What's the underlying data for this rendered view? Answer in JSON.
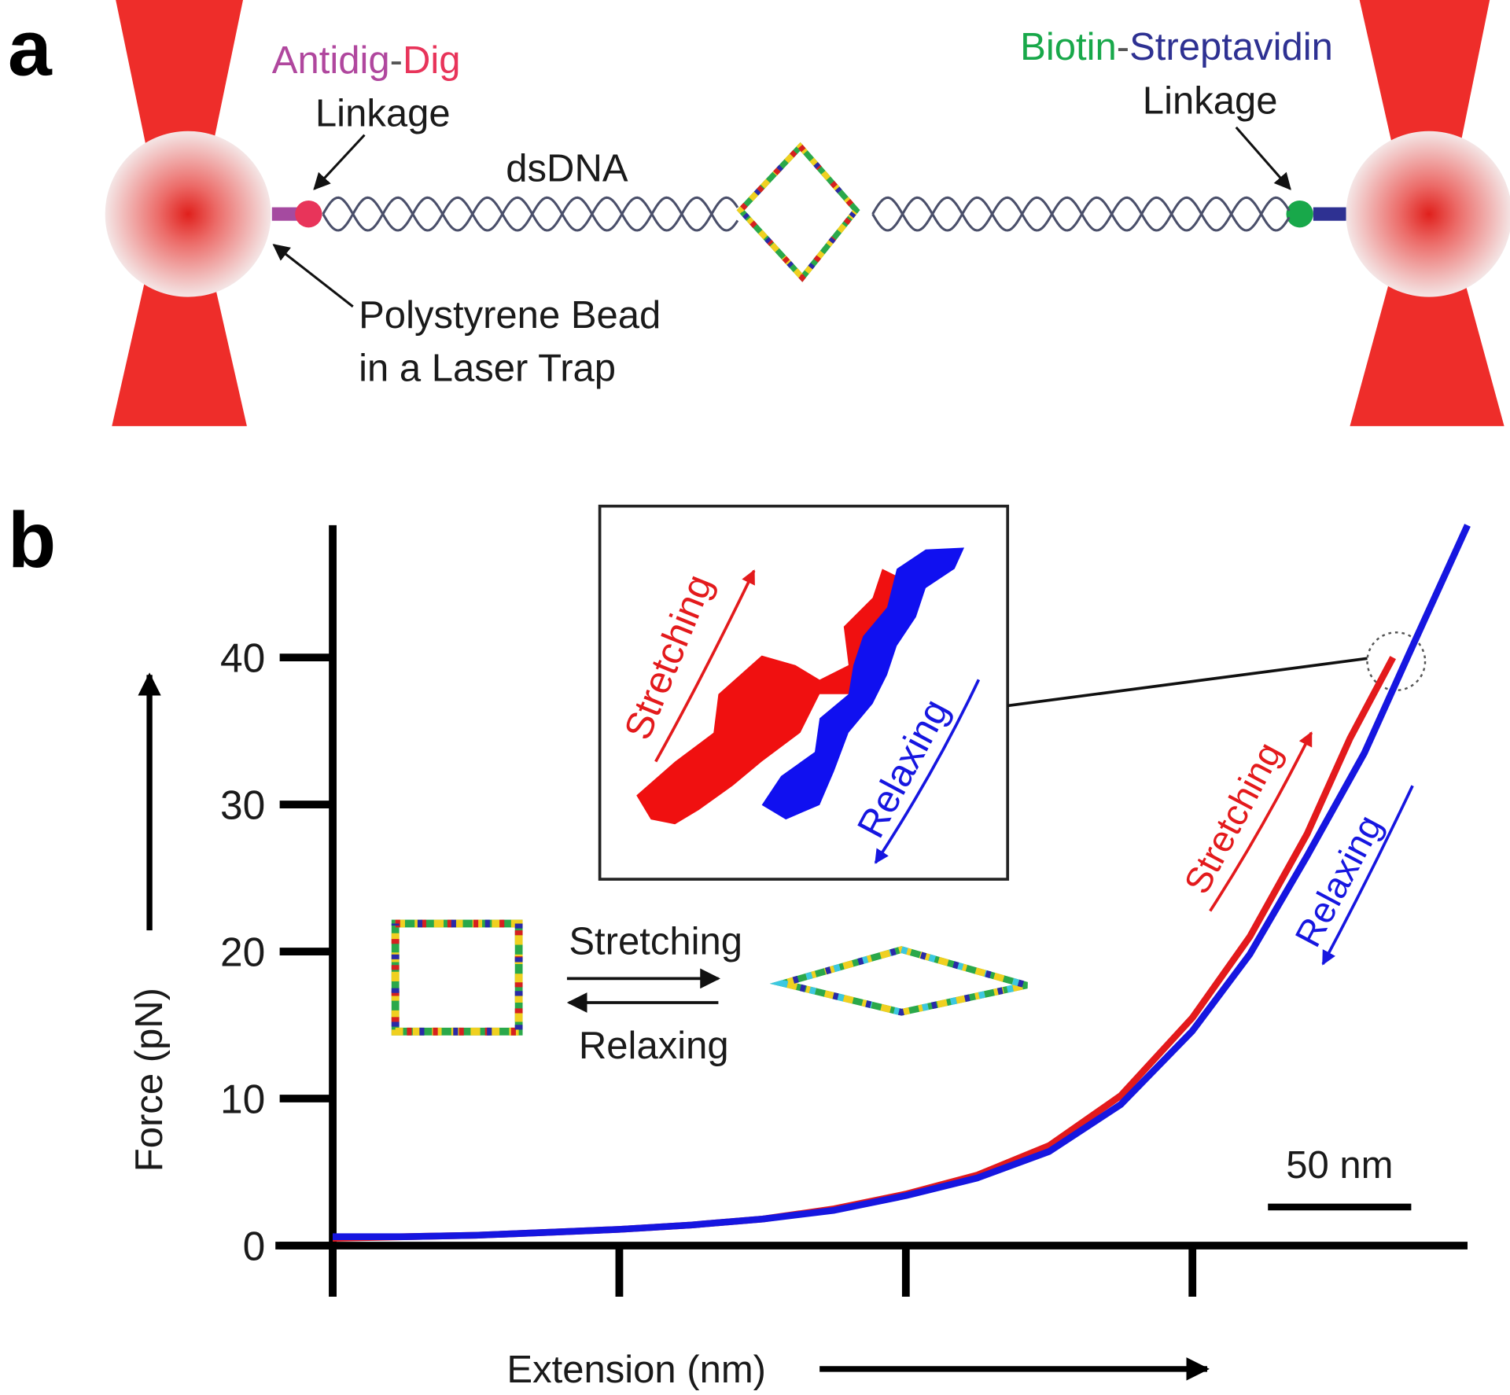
{
  "diagram": {
    "panel_label": "a",
    "left_linkage": {
      "part1": "Antidig",
      "separator": "-",
      "part2": "Dig",
      "line2": "Linkage"
    },
    "dna_label": "dsDNA",
    "bead_label": [
      "Polystyrene Bead",
      "in a Laser Trap"
    ],
    "right_linkage": {
      "part1": "Biotin",
      "separator": "-",
      "part2": "Streptavidin",
      "line2": "Linkage"
    }
  },
  "chart_data": {
    "type": "line",
    "panel_label": "b",
    "x_label": "Extension (nm)",
    "y_label": "Force (pN)",
    "xlim": [
      -20,
      396
    ],
    "xticks": [
      0,
      100,
      200,
      300
    ],
    "ylim": [
      0,
      49
    ],
    "yticks": [
      0,
      10,
      20,
      30,
      40
    ],
    "scale_bar": {
      "value": 50,
      "label": "50 nm"
    },
    "series": [
      {
        "name": "Stretching",
        "color": "#e31a1c",
        "x": [
          0,
          25,
          50,
          75,
          100,
          125,
          150,
          175,
          200,
          225,
          250,
          275,
          300,
          320,
          340,
          355,
          370
        ],
        "values": [
          0.5,
          0.6,
          0.7,
          0.9,
          1.1,
          1.4,
          1.8,
          2.5,
          3.5,
          4.8,
          6.8,
          10.2,
          15.5,
          21,
          28,
          34.5,
          40
        ]
      },
      {
        "name": "Relaxing",
        "color": "#1616e0",
        "x": [
          0,
          25,
          50,
          75,
          100,
          125,
          150,
          175,
          200,
          225,
          250,
          275,
          300,
          320,
          340,
          360,
          375,
          396
        ],
        "values": [
          0.6,
          0.6,
          0.7,
          0.9,
          1.1,
          1.4,
          1.8,
          2.4,
          3.4,
          4.6,
          6.4,
          9.6,
          14.6,
          19.8,
          26.5,
          33.5,
          40,
          49
        ]
      }
    ],
    "inset_labels": [
      "Stretching",
      "Relaxing"
    ],
    "transition_labels": [
      "Stretching",
      "Relaxing"
    ]
  }
}
